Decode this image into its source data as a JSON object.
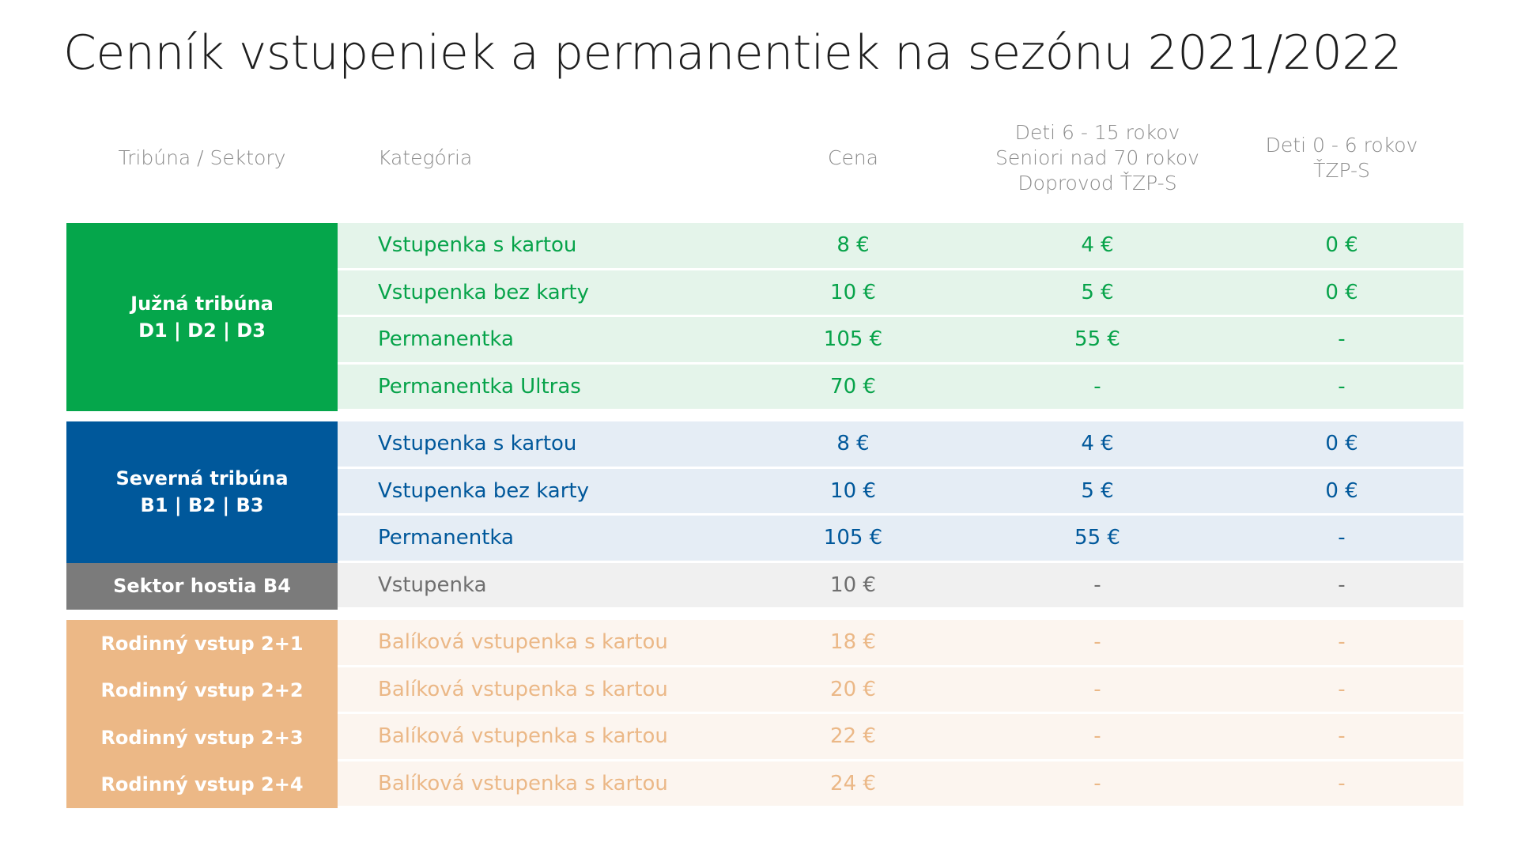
{
  "title": "Cenník vstupeniek a permanentiek na sezónu 2021/2022",
  "header": [
    [
      "Tribúna / Sektory"
    ],
    [
      "Kategória"
    ],
    [
      "Cena"
    ],
    [
      "Deti 6 - 15 rokov",
      "Seniori nad 70 rokov",
      "Doprovod ŤZP-S"
    ],
    [
      "Deti 0 - 6 rokov",
      "ŤZP-S"
    ]
  ],
  "groups": [
    {
      "label": [
        "Južná tribúna",
        "D1 | D2 | D3"
      ],
      "color": "#05a64b",
      "row_color": "#e4f4ea",
      "text_color": "#07a34a",
      "rows": [
        [
          "Vstupenka s kartou",
          "8 €",
          "4 €",
          "0 €"
        ],
        [
          "Vstupenka bez karty",
          "10 €",
          "5 €",
          "0 €"
        ],
        [
          "Permanentka",
          "105 €",
          "55 €",
          "-"
        ],
        [
          "Permanentka Ultras",
          "70 €",
          "-",
          "-"
        ]
      ]
    },
    {
      "label": [
        "Severná tribúna",
        "B1 | B2 | B3"
      ],
      "color": "#00589b",
      "row_color": "#e5edf5",
      "text_color": "#00589b",
      "rows": [
        [
          "Vstupenka s kartou",
          "8 €",
          "4 €",
          "0 €"
        ],
        [
          "Vstupenka bez karty",
          "10 €",
          "5 €",
          "0 €"
        ],
        [
          "Permanentka",
          "105 €",
          "55 €",
          "-"
        ]
      ]
    },
    {
      "label": [
        "Sektor hostia B4"
      ],
      "color": "#7b7b7b",
      "row_color": "#f0f0f0",
      "text_color": "#6f6f6f",
      "rows": [
        [
          "Vstupenka",
          "10 €",
          "-",
          "-"
        ]
      ]
    },
    {
      "label": [
        "Rodinný vstup 2+1"
      ],
      "color": "#ecb886",
      "row_color": "#fcf5ef",
      "text_color": "#ebb887",
      "rows": [
        [
          "Balíková vstupenka s kartou",
          "18 €",
          "-",
          "-"
        ]
      ]
    },
    {
      "label": [
        "Rodinný vstup 2+2"
      ],
      "color": "#ecb886",
      "row_color": "#fcf5ef",
      "text_color": "#ebb887",
      "rows": [
        [
          "Balíková vstupenka s kartou",
          "20 €",
          "-",
          "-"
        ]
      ]
    },
    {
      "label": [
        "Rodinný vstup 2+3"
      ],
      "color": "#ecb886",
      "row_color": "#fcf5ef",
      "text_color": "#ebb887",
      "rows": [
        [
          "Balíková vstupenka s kartou",
          "22 €",
          "-",
          "-"
        ]
      ]
    },
    {
      "label": [
        "Rodinný vstup 2+4"
      ],
      "color": "#ecb886",
      "row_color": "#fcf5ef",
      "text_color": "#ebb887",
      "rows": [
        [
          "Balíková vstupenka s kartou",
          "24 €",
          "-",
          "-"
        ]
      ]
    }
  ]
}
